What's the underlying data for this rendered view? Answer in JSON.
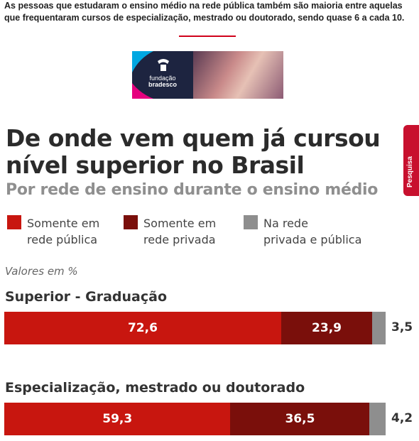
{
  "intro_text": "As pessoas que estudaram o ensino médio na rede pública também são maioria entre aquelas que frequentaram cursos de especialização, mestrado ou doutorado, sendo quase 6 a cada 10.",
  "ad": {
    "brand_line1": "fundação",
    "brand_line2": "bradesco",
    "icon": "fundacao-bradesco-logo"
  },
  "side_tab": {
    "label": "Pesquisa",
    "icon": "survey-icon"
  },
  "colors": {
    "public": "#c8160f",
    "private": "#7a0f0b",
    "both": "#8e8e8e",
    "accent": "#d0021b"
  },
  "chart_data": {
    "type": "bar",
    "orientation": "horizontal-stacked",
    "title": "De onde vem quem já cursou nível superior no Brasil",
    "subtitle": "Por rede de ensino durante o ensino médio",
    "units_note": "Valores em %",
    "legend": [
      {
        "name": "Somente em rede pública",
        "line1": "Somente em",
        "line2": "rede pública"
      },
      {
        "name": "Somente em rede privada",
        "line1": "Somente em",
        "line2": "rede privada"
      },
      {
        "name": "Na rede privada e pública",
        "line1": "Na rede",
        "line2": "privada e pública"
      }
    ],
    "categories": [
      "Superior - Graduação",
      "Especialização, mestrado ou doutorado"
    ],
    "series": [
      {
        "name": "Somente em rede pública",
        "values": [
          72.6,
          59.3
        ],
        "labels": [
          "72,6",
          "59,3"
        ]
      },
      {
        "name": "Somente em rede privada",
        "values": [
          23.9,
          36.5
        ],
        "labels": [
          "23,9",
          "36,5"
        ]
      },
      {
        "name": "Na rede privada e pública",
        "values": [
          3.5,
          4.2
        ],
        "labels": [
          "3,5",
          "4,2"
        ]
      }
    ],
    "xlim": [
      0,
      100
    ],
    "grid": false,
    "legend_position": "top-left"
  }
}
